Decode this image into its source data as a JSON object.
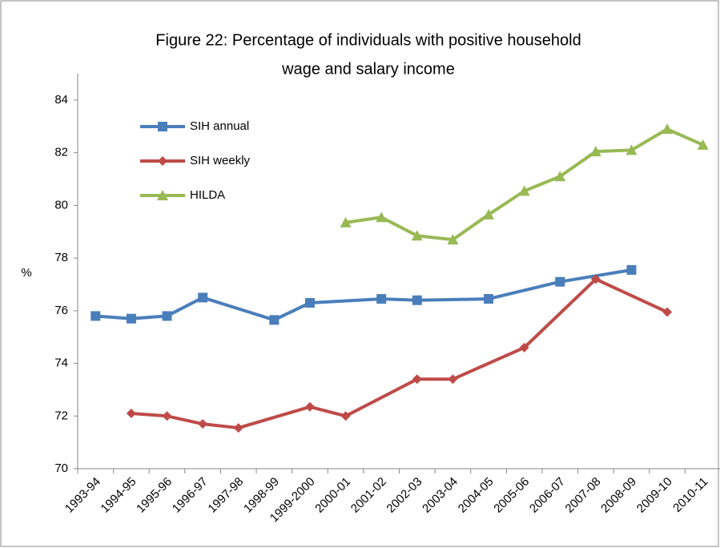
{
  "chart_data": {
    "type": "line",
    "title": [
      "Figure 22: Percentage of individuals with positive household",
      "wage and salary income"
    ],
    "y_label": "%",
    "categories": [
      "1993-94",
      "1994-95",
      "1995-96",
      "1996-97",
      "1997-98",
      "1998-99",
      "1999-2000",
      "2000-01",
      "2001-02",
      "2002-03",
      "2003-04",
      "2004-05",
      "2005-06",
      "2006-07",
      "2007-08",
      "2008-09",
      "2009-10",
      "2010-11"
    ],
    "ylim": [
      70,
      85
    ],
    "yticks": [
      70,
      72,
      74,
      76,
      78,
      80,
      82,
      84
    ],
    "legend": "upper-left",
    "series": [
      {
        "name": "SIH annual",
        "color": "#4a7ebb",
        "marker": "square",
        "x": [
          "1993-94",
          "1994-95",
          "1995-96",
          "1996-97",
          "1998-99",
          "1999-2000",
          "2001-02",
          "2002-03",
          "2004-05",
          "2006-07",
          "2008-09"
        ],
        "values": [
          75.8,
          75.7,
          75.8,
          76.5,
          75.65,
          76.3,
          76.45,
          76.4,
          76.45,
          77.1,
          77.55
        ]
      },
      {
        "name": "SIH weekly",
        "color": "#be4b48",
        "marker": "diamond",
        "x": [
          "1994-95",
          "1995-96",
          "1996-97",
          "1997-98",
          "1999-2000",
          "2000-01",
          "2002-03",
          "2003-04",
          "2005-06",
          "2007-08",
          "2009-10"
        ],
        "values": [
          72.1,
          72.0,
          71.7,
          71.55,
          72.35,
          72.0,
          73.4,
          73.4,
          74.6,
          77.2,
          75.95
        ]
      },
      {
        "name": "HILDA",
        "color": "#98b954",
        "marker": "triangle",
        "x": [
          "2000-01",
          "2001-02",
          "2002-03",
          "2003-04",
          "2004-05",
          "2005-06",
          "2006-07",
          "2007-08",
          "2008-09",
          "2009-10",
          "2010-11"
        ],
        "values": [
          79.35,
          79.55,
          78.85,
          78.7,
          79.65,
          80.55,
          81.1,
          82.05,
          82.1,
          82.9,
          82.3
        ]
      }
    ]
  }
}
